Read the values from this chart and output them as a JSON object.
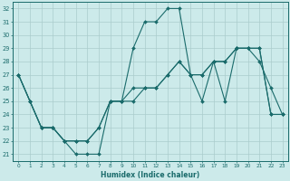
{
  "xlabel": "Humidex (Indice chaleur)",
  "xlim": [
    -0.5,
    23.5
  ],
  "ylim": [
    20.5,
    32.5
  ],
  "yticks": [
    21,
    22,
    23,
    24,
    25,
    26,
    27,
    28,
    29,
    30,
    31,
    32
  ],
  "xticks": [
    0,
    1,
    2,
    3,
    4,
    5,
    6,
    7,
    8,
    9,
    10,
    11,
    12,
    13,
    14,
    15,
    16,
    17,
    18,
    19,
    20,
    21,
    22,
    23
  ],
  "bg_color": "#cceaea",
  "grid_color": "#aacccc",
  "line_color": "#1a6b6b",
  "series1": {
    "x": [
      0,
      1,
      2,
      3,
      4,
      5,
      6,
      7,
      8,
      9,
      10,
      11,
      12,
      13,
      14,
      15,
      16,
      17,
      18,
      19,
      20,
      21,
      22,
      23
    ],
    "y": [
      27,
      25,
      23,
      23,
      22,
      21,
      21,
      21,
      25,
      25,
      29,
      31,
      31,
      32,
      32,
      27,
      25,
      28,
      25,
      29,
      29,
      28,
      26,
      24
    ]
  },
  "series2": {
    "x": [
      0,
      1,
      2,
      3,
      4,
      5,
      6,
      7,
      8,
      9,
      10,
      11,
      12,
      13,
      14,
      15,
      16,
      17,
      18,
      19,
      20,
      21,
      22,
      23
    ],
    "y": [
      27,
      25,
      23,
      23,
      22,
      22,
      22,
      23,
      25,
      25,
      26,
      26,
      26,
      27,
      28,
      27,
      27,
      28,
      28,
      29,
      29,
      29,
      24,
      24
    ]
  },
  "series3": {
    "x": [
      0,
      1,
      2,
      3,
      4,
      5,
      6,
      7,
      8,
      9,
      10,
      11,
      12,
      13,
      14,
      15,
      16,
      17,
      18,
      19,
      20,
      21,
      22,
      23
    ],
    "y": [
      27,
      25,
      23,
      23,
      22,
      22,
      22,
      23,
      25,
      25,
      25,
      26,
      26,
      27,
      28,
      27,
      27,
      28,
      28,
      29,
      29,
      29,
      24,
      24
    ]
  }
}
